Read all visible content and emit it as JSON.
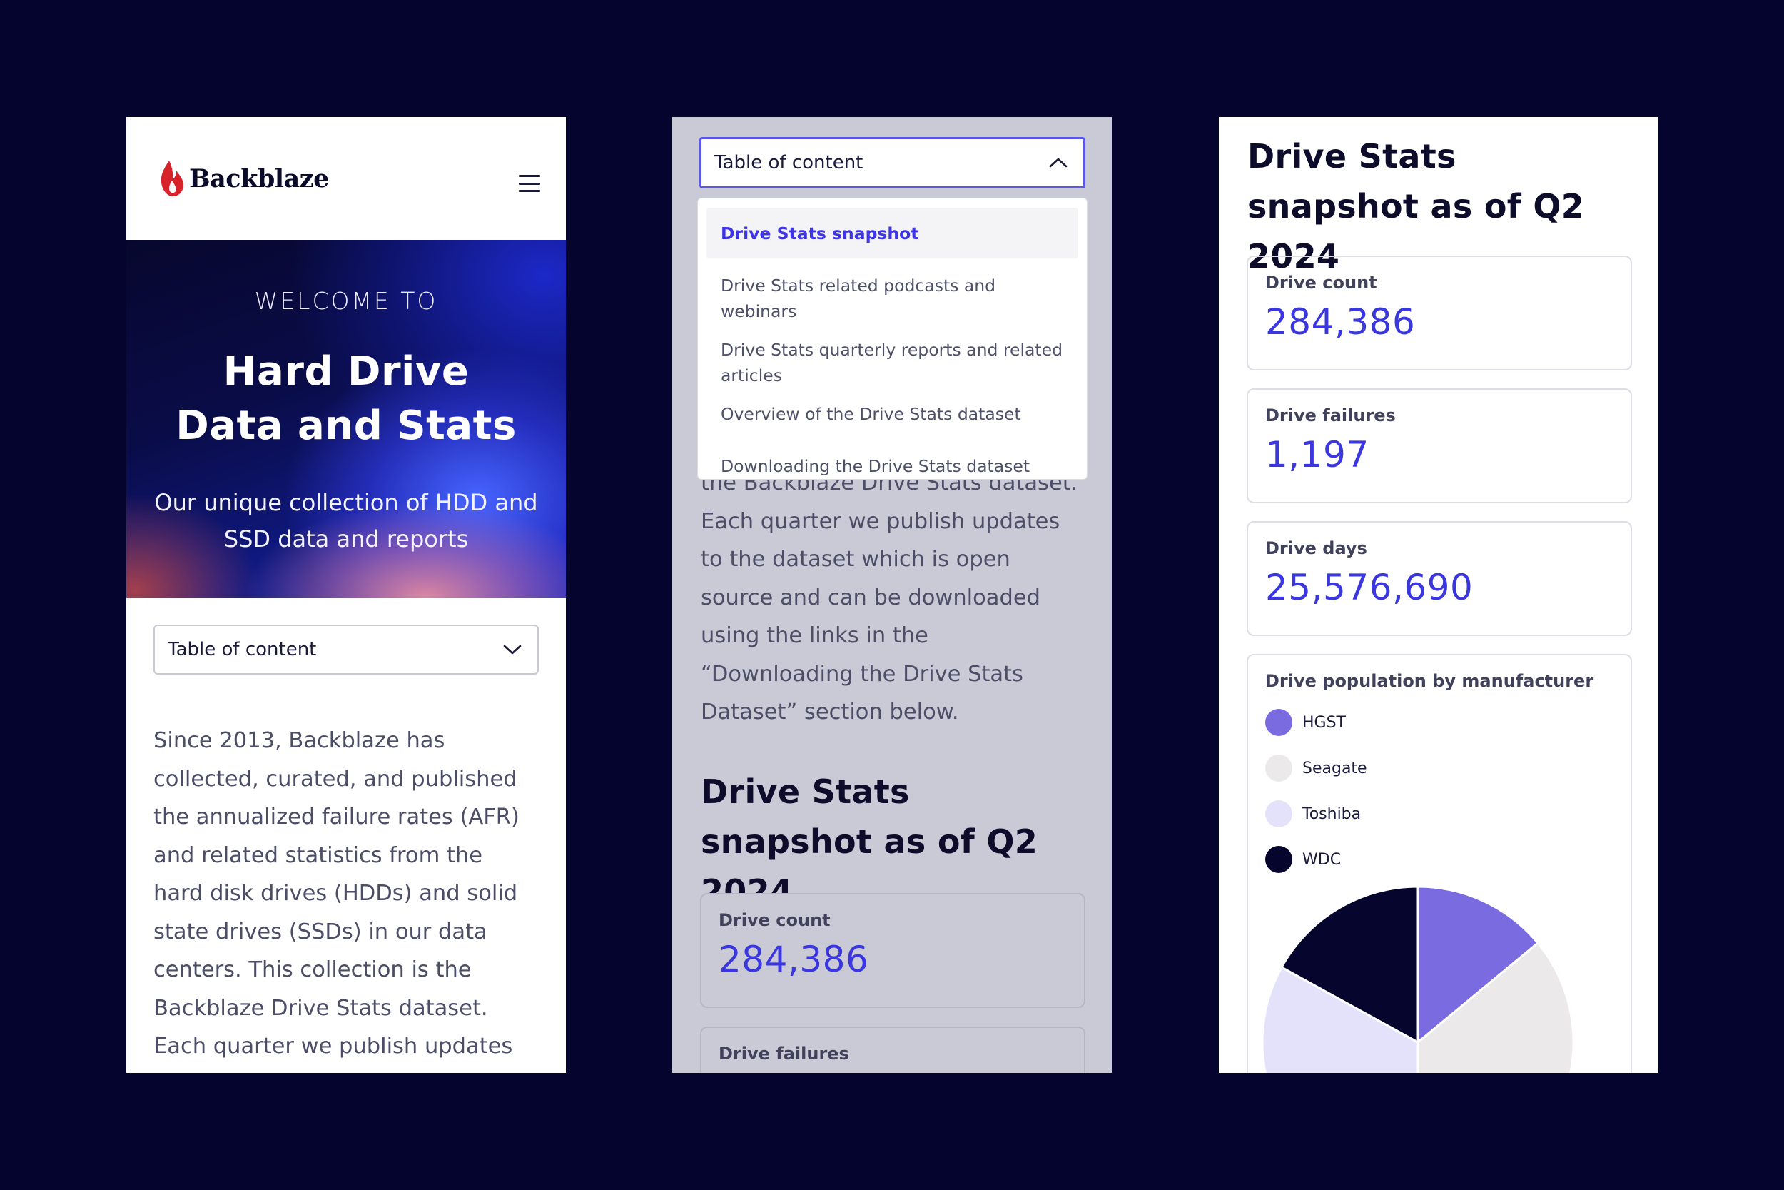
{
  "brand": {
    "name": "Backblaze"
  },
  "hero": {
    "eyebrow": "WELCOME TO",
    "title": "Hard Drive Data and Stats",
    "subtitle": "Our unique collection of HDD and SSD data and reports"
  },
  "toc": {
    "label": "Table of content",
    "items": [
      {
        "label": "Drive Stats snapshot",
        "active": true
      },
      {
        "label": "Drive Stats related podcasts and webinars",
        "active": false
      },
      {
        "label": "Drive Stats quarterly reports and related articles",
        "active": false
      },
      {
        "label": "Overview of the Drive Stats dataset",
        "active": false
      },
      {
        "label": "Downloading the Drive Stats dataset",
        "active": false
      }
    ]
  },
  "intro": {
    "paragraph_s1": "Since 2013, Backblaze has collected, curated, and published the annualized failure rates (AFR) and related statistics from the hard disk drives (HDDs) and solid state drives (SSDs) in our data centers. This collection is the Backblaze Drive Stats dataset. Each quarter we publish updates to the dataset which is open source and",
    "paragraph_s2": "the Backblaze Drive Stats dataset. Each quarter we publish updates to the dataset which is open source and can be downloaded using the links in the “Downloading the Drive Stats Dataset” section below."
  },
  "snapshot": {
    "heading": "Drive Stats snapshot as of Q2 2024",
    "stats": [
      {
        "label": "Drive count",
        "value": "284,386"
      },
      {
        "label": "Drive failures",
        "value": "1,197"
      },
      {
        "label": "Drive days",
        "value": "25,576,690"
      }
    ]
  },
  "pie_card": {
    "title": "Drive population by manufacturer"
  },
  "colors": {
    "background": "#04042e",
    "accent": "#3b37e0",
    "hgst": "#7a6be0",
    "seagate": "#ece9ea",
    "toshiba": "#e4e2fb",
    "wdc": "#05052d"
  },
  "chart_data": {
    "type": "pie",
    "title": "Drive population by manufacturer",
    "categories": [
      "HGST",
      "Seagate",
      "Toshiba",
      "WDC"
    ],
    "values": [
      14,
      36,
      33,
      17
    ],
    "colors": [
      "#7a6be0",
      "#ece9ea",
      "#e4e2fb",
      "#05052d"
    ],
    "legend": "top-left"
  }
}
